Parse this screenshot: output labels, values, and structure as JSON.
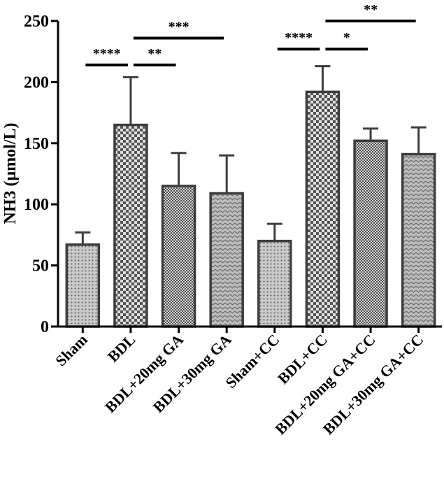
{
  "chart_data": {
    "type": "bar",
    "title": "",
    "xlabel": "",
    "ylabel": "NH3 (μmol/L)",
    "ylim": [
      0,
      250
    ],
    "yticks": [
      0,
      50,
      100,
      150,
      200,
      250
    ],
    "grid": false,
    "legend": "none",
    "categories": [
      "Sham",
      "BDL",
      "BDL+20mg GA",
      "BDL+30mg GA",
      "Sham+CC",
      "BDL+CC",
      "BDL+20mg GA+CC",
      "BDL+30mg GA+CC"
    ],
    "values": [
      67,
      165,
      115,
      109,
      70,
      192,
      152,
      141
    ],
    "errors": [
      10,
      39,
      27,
      31,
      14,
      21,
      10,
      22
    ],
    "patterns": [
      "dots",
      "checker-large",
      "checker-small",
      "chevron",
      "dots",
      "checker-large",
      "checker-small",
      "chevron"
    ],
    "significance": [
      {
        "from": "Sham",
        "to": "BDL",
        "label": "****",
        "y": 214
      },
      {
        "from": "BDL",
        "to": "BDL+20mg GA",
        "label": "**",
        "y": 214
      },
      {
        "from": "BDL",
        "to": "BDL+30mg GA",
        "label": "***",
        "y": 236
      },
      {
        "from": "Sham+CC",
        "to": "BDL+CC",
        "label": "****",
        "y": 227
      },
      {
        "from": "BDL+CC",
        "to": "BDL+20mg GA+CC",
        "label": "*",
        "y": 227
      },
      {
        "from": "BDL+CC",
        "to": "BDL+30mg GA+CC",
        "label": "**",
        "y": 250
      }
    ]
  },
  "colors": {
    "bar_stroke": "#3d3d3d",
    "pattern_dark": "#4a4a4a",
    "pattern_light": "#d6d6d6",
    "axis": "#000000"
  }
}
